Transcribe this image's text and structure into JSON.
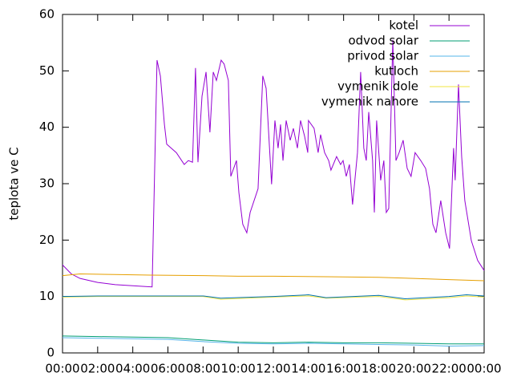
{
  "chart_data": {
    "type": "line",
    "ylabel": "teplota ve C",
    "xlim": [
      0,
      24
    ],
    "ylim": [
      0,
      60
    ],
    "yticks": [
      0,
      10,
      20,
      30,
      40,
      50,
      60
    ],
    "xticks": [
      {
        "value": 0,
        "label": "00:00"
      },
      {
        "value": 2,
        "label": "02:00"
      },
      {
        "value": 4,
        "label": "04:00"
      },
      {
        "value": 6,
        "label": "06:00"
      },
      {
        "value": 8,
        "label": "08:00"
      },
      {
        "value": 10,
        "label": "10:00"
      },
      {
        "value": 12,
        "label": "12:00"
      },
      {
        "value": 14,
        "label": "14:00"
      },
      {
        "value": 16,
        "label": "16:00"
      },
      {
        "value": 18,
        "label": "18:00"
      },
      {
        "value": 20,
        "label": "20:00"
      },
      {
        "value": 22,
        "label": "22:00"
      },
      {
        "value": 24,
        "label": "00:00"
      }
    ],
    "legend": "top-right",
    "series": [
      {
        "name": "kotel",
        "color": "#9400d3",
        "x": [
          0,
          0.5,
          1,
          2,
          3,
          4,
          5.1,
          5.38,
          5.57,
          5.8,
          5.93,
          6.48,
          6.93,
          7.16,
          7.4,
          7.57,
          7.71,
          7.94,
          8.17,
          8.39,
          8.58,
          8.76,
          9.03,
          9.2,
          9.44,
          9.58,
          9.9,
          10.04,
          10.26,
          10.49,
          10.68,
          11.13,
          11.4,
          11.59,
          11.9,
          12.09,
          12.27,
          12.41,
          12.55,
          12.73,
          12.96,
          13.14,
          13.37,
          13.55,
          13.78,
          13.96,
          14.0,
          14.32,
          14.55,
          14.69,
          14.92,
          15.15,
          15.28,
          15.6,
          15.83,
          15.97,
          16.15,
          16.33,
          16.51,
          16.79,
          16.97,
          17.15,
          17.29,
          17.43,
          17.65,
          17.75,
          17.88,
          18.11,
          18.29,
          18.43,
          18.57,
          18.8,
          18.98,
          19.16,
          19.39,
          19.62,
          19.84,
          20.07,
          20.39,
          20.67,
          20.89,
          21.08,
          21.26,
          21.53,
          21.81,
          22.03,
          22.26,
          22.35,
          22.54,
          22.72,
          22.9,
          23.27,
          23.63,
          24
        ],
        "values": [
          15.6,
          14,
          13.2,
          12.5,
          12.1,
          11.9,
          11.7,
          51.9,
          49.1,
          40.5,
          37.0,
          35.5,
          33.4,
          34.1,
          33.8,
          50.5,
          33.8,
          45.5,
          49.8,
          39.1,
          49.8,
          48.3,
          51.9,
          51.2,
          48.3,
          31.3,
          34.1,
          28.4,
          22.8,
          21.3,
          24.9,
          29.1,
          49.1,
          46.9,
          29.9,
          41.2,
          36.3,
          40.5,
          34.1,
          41.2,
          37.7,
          39.8,
          36.3,
          41.2,
          38.4,
          35.5,
          41.2,
          39.8,
          35.5,
          38.7,
          35.5,
          34.1,
          32.4,
          34.8,
          33.4,
          34.1,
          31.3,
          33.4,
          26.3,
          35.5,
          49.8,
          36.3,
          34.1,
          42.7,
          34.1,
          24.9,
          41.2,
          30.6,
          34.1,
          24.9,
          25.6,
          55.5,
          34.1,
          35.5,
          37.7,
          32.7,
          31.3,
          35.5,
          34.1,
          32.7,
          29.1,
          22.8,
          21.3,
          27.0,
          21.3,
          18.5,
          36.3,
          30.6,
          47.6,
          34.8,
          27.0,
          19.9,
          16.4,
          14.6
        ]
      },
      {
        "name": "odvod solar",
        "color": "#009e73",
        "x": [
          0,
          2,
          4,
          6,
          8,
          10,
          12,
          14,
          16,
          18,
          20,
          22,
          24
        ],
        "values": [
          3.0,
          2.9,
          2.8,
          2.7,
          2.3,
          1.9,
          1.8,
          1.9,
          1.8,
          1.8,
          1.7,
          1.6,
          1.6
        ]
      },
      {
        "name": "privod solar",
        "color": "#56b4e9",
        "x": [
          0,
          2,
          4,
          6,
          8,
          10,
          12,
          14,
          16,
          18,
          20,
          22,
          24
        ],
        "values": [
          2.7,
          2.6,
          2.5,
          2.4,
          2.0,
          1.7,
          1.6,
          1.7,
          1.6,
          1.5,
          1.4,
          1.2,
          1.3
        ]
      },
      {
        "name": "kutloch",
        "color": "#e69f00",
        "x": [
          0,
          1,
          3,
          5,
          8,
          10,
          12,
          15,
          18,
          20,
          22,
          24
        ],
        "values": [
          13.7,
          14.0,
          13.9,
          13.8,
          13.7,
          13.6,
          13.6,
          13.5,
          13.4,
          13.2,
          13.0,
          12.8
        ]
      },
      {
        "name": "vymenik dole",
        "color": "#f0e442",
        "x": [
          0,
          2,
          4,
          6,
          8,
          9,
          12,
          14,
          15,
          18,
          19.5,
          22,
          23,
          24
        ],
        "values": [
          9.9,
          10.0,
          10.0,
          10.0,
          10.0,
          9.5,
          9.9,
          10.1,
          9.7,
          10.0,
          9.4,
          9.8,
          10.1,
          9.9
        ]
      },
      {
        "name": "vymenik nahore",
        "color": "#0072b2",
        "x": [
          0,
          2,
          4,
          6,
          8,
          9,
          12,
          14,
          15,
          18,
          19.5,
          22,
          23,
          24
        ],
        "values": [
          10.0,
          10.1,
          10.1,
          10.1,
          10.1,
          9.7,
          10.0,
          10.3,
          9.8,
          10.2,
          9.6,
          10.0,
          10.3,
          10.1
        ]
      }
    ]
  }
}
